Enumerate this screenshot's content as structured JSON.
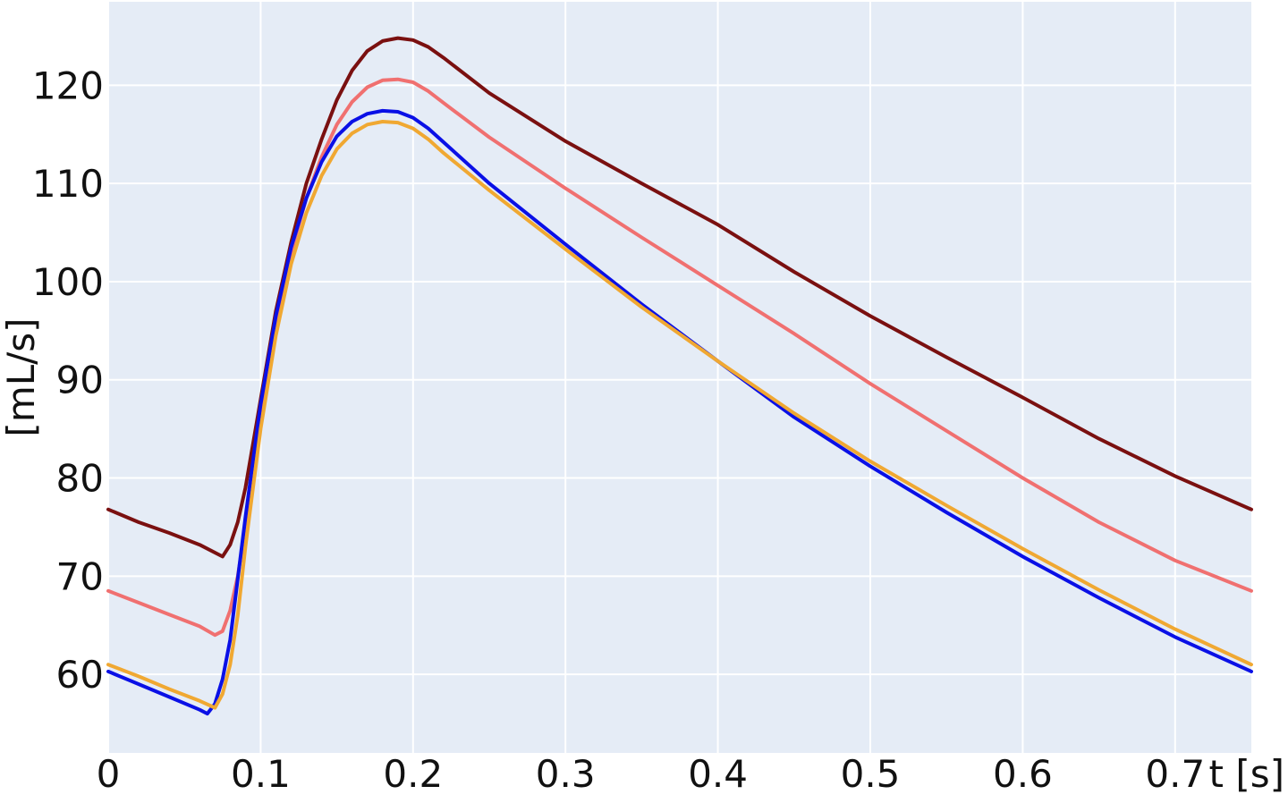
{
  "chart_data": {
    "type": "line",
    "xlabel": "t [s]",
    "ylabel": "[mL/s]",
    "title": "",
    "xlim": [
      0,
      0.75
    ],
    "ylim": [
      52,
      128.5
    ],
    "xticks": [
      0,
      0.1,
      0.2,
      0.3,
      0.4,
      0.5,
      0.6,
      0.7
    ],
    "xtick_labels": [
      "0",
      "0.1",
      "0.2",
      "0.3",
      "0.4",
      "0.5",
      "0.6",
      "0.7"
    ],
    "yticks": [
      60,
      70,
      80,
      90,
      100,
      110,
      120
    ],
    "ytick_labels": [
      "60",
      "70",
      "80",
      "90",
      "100",
      "110",
      "120"
    ],
    "grid": true,
    "legend": "none",
    "colors": {
      "plot_background": "#e5ecf6",
      "grid": "#ffffff"
    },
    "series": [
      {
        "color": "#7a1010",
        "points": [
          [
            0,
            76.8
          ],
          [
            0.02,
            75.5
          ],
          [
            0.04,
            74.4
          ],
          [
            0.06,
            73.2
          ],
          [
            0.075,
            72.0
          ],
          [
            0.08,
            73.2
          ],
          [
            0.085,
            75.5
          ],
          [
            0.09,
            79.0
          ],
          [
            0.1,
            88.0
          ],
          [
            0.11,
            97.0
          ],
          [
            0.12,
            104.0
          ],
          [
            0.13,
            110.0
          ],
          [
            0.14,
            114.5
          ],
          [
            0.15,
            118.5
          ],
          [
            0.16,
            121.5
          ],
          [
            0.17,
            123.5
          ],
          [
            0.18,
            124.5
          ],
          [
            0.19,
            124.8
          ],
          [
            0.2,
            124.6
          ],
          [
            0.21,
            123.9
          ],
          [
            0.22,
            122.8
          ],
          [
            0.25,
            119.2
          ],
          [
            0.3,
            114.3
          ],
          [
            0.35,
            110.0
          ],
          [
            0.4,
            105.8
          ],
          [
            0.45,
            101.0
          ],
          [
            0.5,
            96.5
          ],
          [
            0.55,
            92.3
          ],
          [
            0.6,
            88.2
          ],
          [
            0.65,
            84.0
          ],
          [
            0.7,
            80.2
          ],
          [
            0.75,
            76.8
          ]
        ]
      },
      {
        "color": "#f07070",
        "points": [
          [
            0,
            68.5
          ],
          [
            0.02,
            67.3
          ],
          [
            0.04,
            66.1
          ],
          [
            0.06,
            64.9
          ],
          [
            0.07,
            64.0
          ],
          [
            0.075,
            64.4
          ],
          [
            0.08,
            66.5
          ],
          [
            0.085,
            70.0
          ],
          [
            0.09,
            75.0
          ],
          [
            0.1,
            86.0
          ],
          [
            0.11,
            95.5
          ],
          [
            0.12,
            103.0
          ],
          [
            0.13,
            108.5
          ],
          [
            0.14,
            112.7
          ],
          [
            0.15,
            116.0
          ],
          [
            0.16,
            118.3
          ],
          [
            0.17,
            119.8
          ],
          [
            0.18,
            120.5
          ],
          [
            0.19,
            120.6
          ],
          [
            0.2,
            120.3
          ],
          [
            0.21,
            119.4
          ],
          [
            0.22,
            118.2
          ],
          [
            0.25,
            114.7
          ],
          [
            0.3,
            109.5
          ],
          [
            0.35,
            104.5
          ],
          [
            0.4,
            99.6
          ],
          [
            0.45,
            94.7
          ],
          [
            0.5,
            89.6
          ],
          [
            0.55,
            84.8
          ],
          [
            0.6,
            80.0
          ],
          [
            0.65,
            75.5
          ],
          [
            0.7,
            71.6
          ],
          [
            0.75,
            68.5
          ]
        ]
      },
      {
        "color": "#0a10e6",
        "points": [
          [
            0,
            60.3
          ],
          [
            0.02,
            59.0
          ],
          [
            0.04,
            57.7
          ],
          [
            0.06,
            56.4
          ],
          [
            0.065,
            56.0
          ],
          [
            0.07,
            57.0
          ],
          [
            0.075,
            59.5
          ],
          [
            0.08,
            63.5
          ],
          [
            0.09,
            76.0
          ],
          [
            0.1,
            87.5
          ],
          [
            0.11,
            96.5
          ],
          [
            0.12,
            103.5
          ],
          [
            0.13,
            108.5
          ],
          [
            0.14,
            112.2
          ],
          [
            0.15,
            114.8
          ],
          [
            0.16,
            116.3
          ],
          [
            0.17,
            117.1
          ],
          [
            0.18,
            117.4
          ],
          [
            0.19,
            117.3
          ],
          [
            0.2,
            116.7
          ],
          [
            0.21,
            115.6
          ],
          [
            0.22,
            114.2
          ],
          [
            0.25,
            110.0
          ],
          [
            0.3,
            103.8
          ],
          [
            0.35,
            97.7
          ],
          [
            0.4,
            91.9
          ],
          [
            0.45,
            86.2
          ],
          [
            0.5,
            81.2
          ],
          [
            0.55,
            76.5
          ],
          [
            0.6,
            72.0
          ],
          [
            0.65,
            67.8
          ],
          [
            0.7,
            63.8
          ],
          [
            0.75,
            60.3
          ]
        ]
      },
      {
        "color": "#f0a832",
        "points": [
          [
            0,
            61.0
          ],
          [
            0.02,
            59.8
          ],
          [
            0.04,
            58.5
          ],
          [
            0.06,
            57.3
          ],
          [
            0.07,
            56.6
          ],
          [
            0.075,
            58.0
          ],
          [
            0.08,
            61.0
          ],
          [
            0.085,
            66.0
          ],
          [
            0.09,
            73.0
          ],
          [
            0.1,
            85.0
          ],
          [
            0.11,
            94.5
          ],
          [
            0.12,
            101.8
          ],
          [
            0.13,
            107.0
          ],
          [
            0.14,
            110.8
          ],
          [
            0.15,
            113.5
          ],
          [
            0.16,
            115.1
          ],
          [
            0.17,
            116.0
          ],
          [
            0.18,
            116.3
          ],
          [
            0.19,
            116.2
          ],
          [
            0.2,
            115.6
          ],
          [
            0.21,
            114.5
          ],
          [
            0.22,
            113.1
          ],
          [
            0.25,
            109.3
          ],
          [
            0.3,
            103.3
          ],
          [
            0.35,
            97.4
          ],
          [
            0.4,
            91.9
          ],
          [
            0.45,
            86.6
          ],
          [
            0.5,
            81.7
          ],
          [
            0.55,
            77.2
          ],
          [
            0.6,
            72.8
          ],
          [
            0.65,
            68.6
          ],
          [
            0.7,
            64.6
          ],
          [
            0.75,
            61.0
          ]
        ]
      }
    ]
  }
}
